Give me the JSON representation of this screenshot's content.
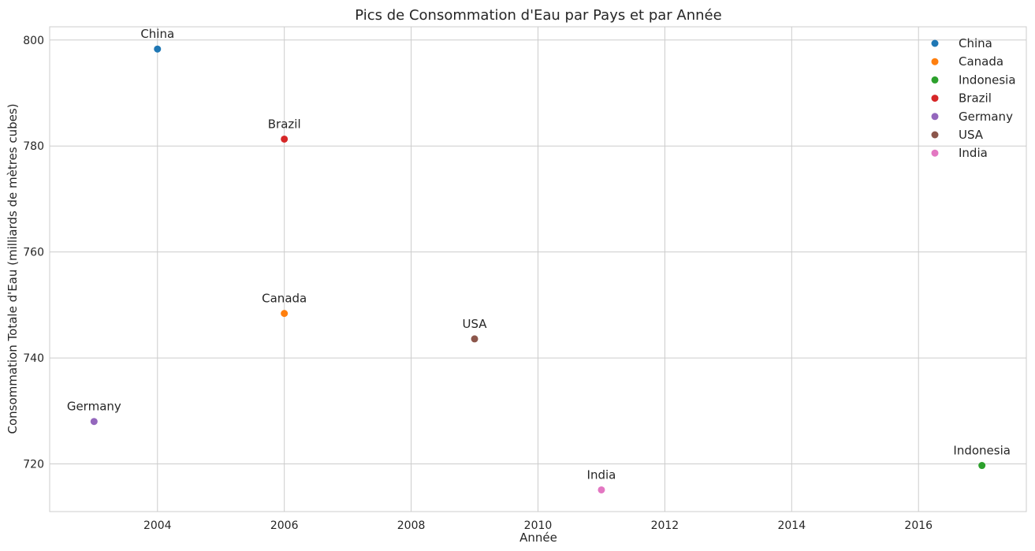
{
  "chart_data": {
    "type": "scatter",
    "title": "Pics de Consommation d'Eau par Pays et par Année",
    "xlabel": "Année",
    "ylabel": "Consommation Totale d'Eau (milliards de mètres cubes)",
    "xlim": [
      2002.3,
      2017.7
    ],
    "ylim": [
      711,
      802.5
    ],
    "xticks": [
      2004,
      2006,
      2008,
      2010,
      2012,
      2014,
      2016
    ],
    "yticks": [
      720,
      740,
      760,
      780,
      800
    ],
    "grid": true,
    "legend_position": "top-right",
    "series": [
      {
        "name": "China",
        "color": "#1f77b4",
        "points": [
          {
            "x": 2004,
            "y": 798.3,
            "label": "China"
          }
        ]
      },
      {
        "name": "Canada",
        "color": "#ff7f0e",
        "points": [
          {
            "x": 2006,
            "y": 748.4,
            "label": "Canada"
          }
        ]
      },
      {
        "name": "Indonesia",
        "color": "#2ca02c",
        "points": [
          {
            "x": 2017,
            "y": 719.7,
            "label": "Indonesia"
          }
        ]
      },
      {
        "name": "Brazil",
        "color": "#d62728",
        "points": [
          {
            "x": 2006,
            "y": 781.3,
            "label": "Brazil"
          }
        ]
      },
      {
        "name": "Germany",
        "color": "#9467bd",
        "points": [
          {
            "x": 2003,
            "y": 728.0,
            "label": "Germany"
          }
        ]
      },
      {
        "name": "USA",
        "color": "#8c564b",
        "points": [
          {
            "x": 2009,
            "y": 743.6,
            "label": "USA"
          }
        ]
      },
      {
        "name": "India",
        "color": "#e377c2",
        "points": [
          {
            "x": 2011,
            "y": 715.1,
            "label": "India"
          }
        ]
      }
    ]
  }
}
